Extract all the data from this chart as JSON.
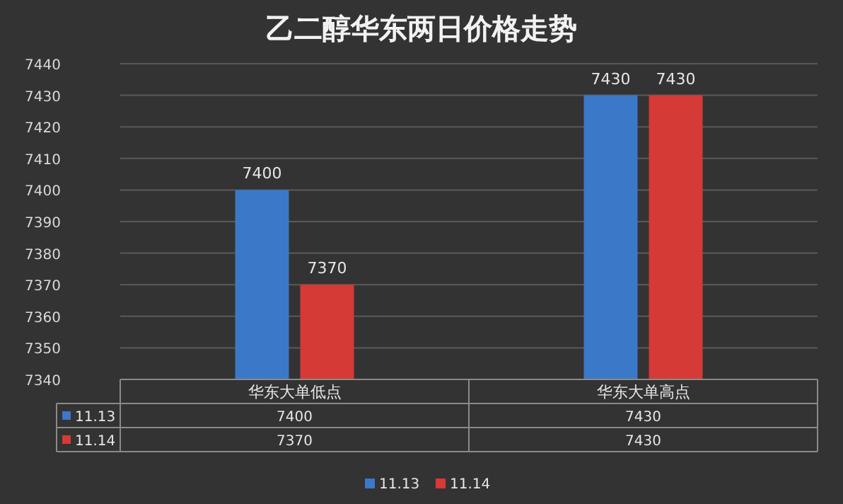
{
  "chart_data": {
    "type": "bar",
    "title": "乙二醇华东两日价格走势",
    "categories": [
      "华东大单低点",
      "华东大单高点"
    ],
    "series": [
      {
        "name": "11.13",
        "color": "#3b78c8",
        "values": [
          7400,
          7430
        ],
        "value_labels": [
          "7400",
          "7430"
        ]
      },
      {
        "name": "11.14",
        "color": "#d63a36",
        "values": [
          7370,
          7430
        ],
        "value_labels": [
          "7370",
          "7430"
        ]
      }
    ],
    "ylim": [
      7340,
      7440
    ],
    "yticks": [
      7340,
      7350,
      7360,
      7370,
      7380,
      7390,
      7400,
      7410,
      7420,
      7430,
      7440
    ],
    "grid": "y",
    "legend": "bottom",
    "annotations": [
      "7400",
      "7430",
      "7370",
      "7430"
    ]
  }
}
